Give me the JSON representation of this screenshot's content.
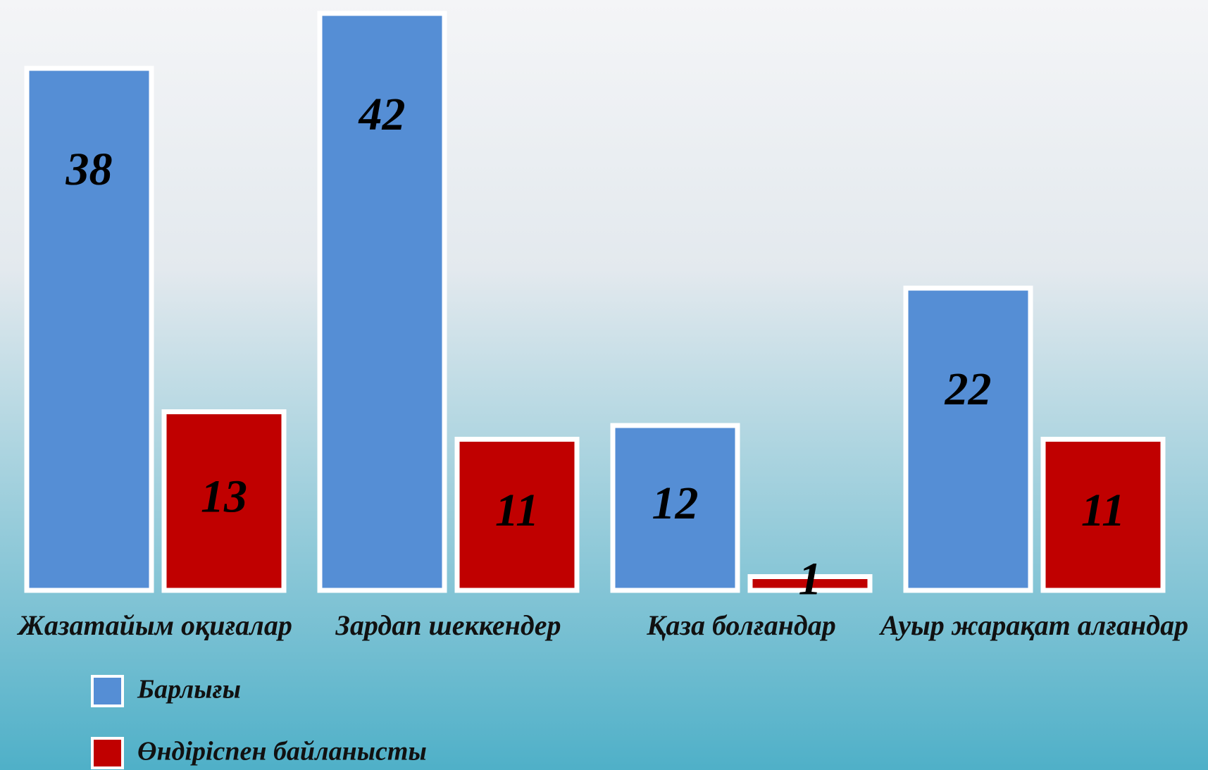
{
  "chart_data": {
    "type": "bar",
    "categories": [
      "Жазатайым оқиғалар",
      "Зардап шеккендер",
      "Қаза болғандар",
      "Ауыр жарақат алғандар"
    ],
    "series": [
      {
        "name": "Барлығы",
        "color": "#558ed5",
        "values": [
          38,
          42,
          12,
          22
        ]
      },
      {
        "name": "Өндіріспен байланысты",
        "color": "#c00000",
        "values": [
          13,
          11,
          1,
          11
        ]
      }
    ]
  }
}
